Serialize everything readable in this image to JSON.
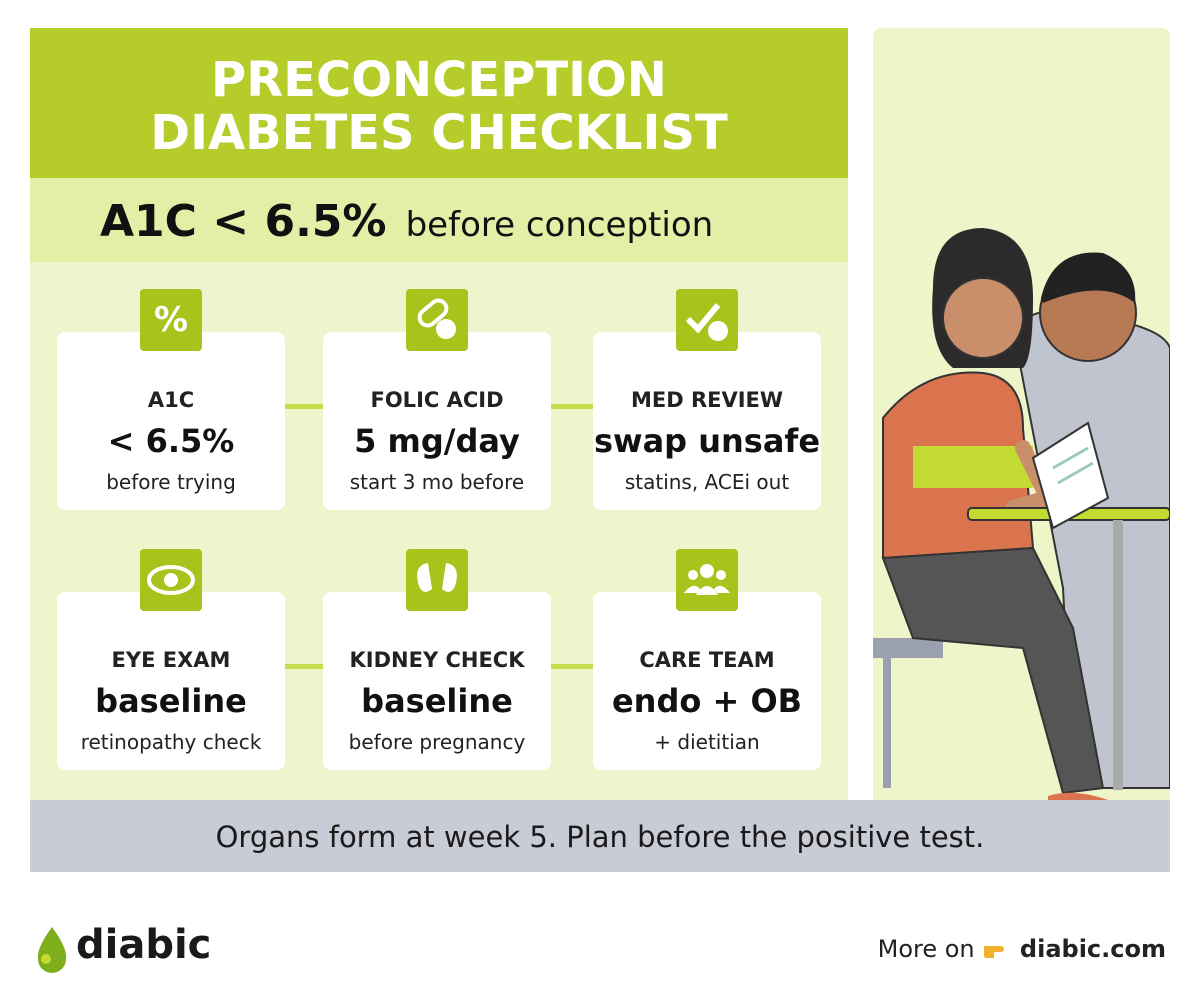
{
  "header": {
    "title": [
      "PRECONCEPTION",
      "DIABETES CHECKLIST"
    ],
    "target": "A1C < 6.5%",
    "target_note": "before conception"
  },
  "cards": [
    {
      "label": "A1C",
      "value": "< 6.5%",
      "note": "before trying"
    },
    {
      "label": "FOLIC ACID",
      "value": "5 mg/day",
      "note": "start 3 mo before"
    },
    {
      "label": "MED REVIEW",
      "value": "swap unsafe",
      "note": "statins, ACEi out"
    },
    {
      "label": "EYE EXAM",
      "value": "baseline",
      "note": "retinopathy check"
    },
    {
      "label": "KIDNEY CHECK",
      "value": "baseline",
      "note": "before pregnancy"
    },
    {
      "label": "CARE TEAM",
      "value": "endo + OB",
      "note": "+ dietitian"
    }
  ],
  "banner": "Organs form at week 5. Plan before the positive test.",
  "footer": {
    "brand": "diabic",
    "more": "More on",
    "site": "diabic.com"
  }
}
